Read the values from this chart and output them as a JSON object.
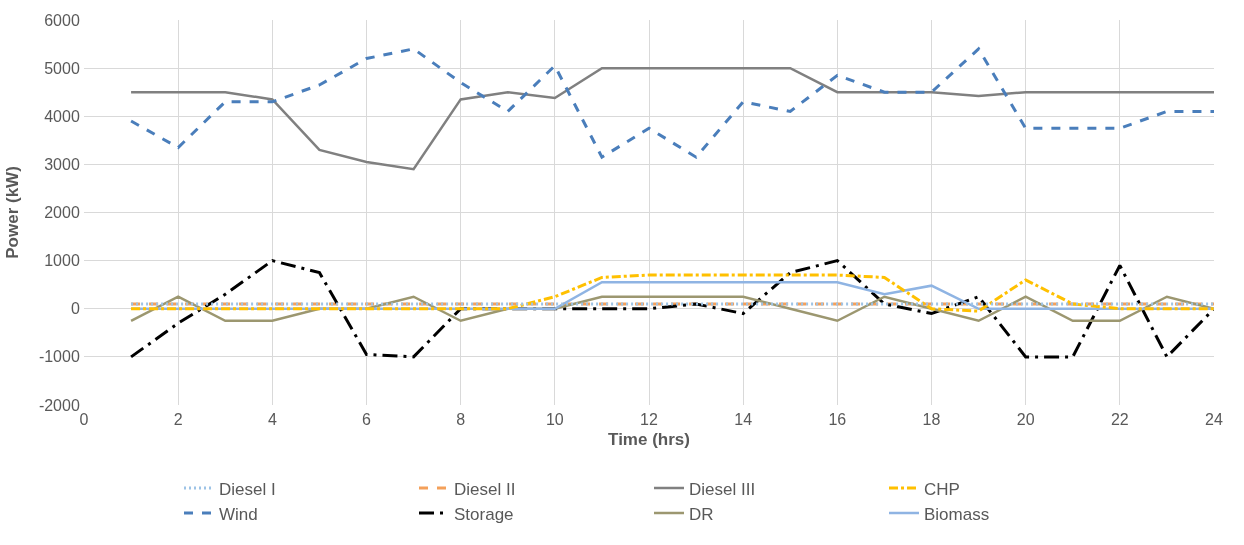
{
  "chart_data": {
    "type": "line",
    "xlabel": "Time (hrs)",
    "ylabel": "Power (kW)",
    "x": [
      1,
      2,
      3,
      4,
      5,
      6,
      7,
      8,
      9,
      10,
      11,
      12,
      13,
      14,
      15,
      16,
      17,
      18,
      19,
      20,
      21,
      22,
      23,
      24
    ],
    "xlim": [
      0,
      24
    ],
    "xticks": [
      0,
      2,
      4,
      6,
      8,
      10,
      12,
      14,
      16,
      18,
      20,
      22,
      24
    ],
    "ylim": [
      -2000,
      6000
    ],
    "yticks": [
      -2000,
      -1000,
      0,
      1000,
      2000,
      3000,
      4000,
      5000,
      6000
    ],
    "grid": true,
    "legend": "bottom",
    "marker": "none",
    "series": [
      {
        "name": "Diesel I",
        "color": "#9dc3e6",
        "line_style": "dotted",
        "values": [
          100,
          100,
          100,
          100,
          100,
          100,
          100,
          100,
          100,
          100,
          100,
          100,
          100,
          100,
          100,
          100,
          100,
          100,
          100,
          100,
          100,
          100,
          100,
          100
        ]
      },
      {
        "name": "Diesel II",
        "color": "#f4a05a",
        "line_style": "dashed",
        "values": [
          100,
          100,
          100,
          100,
          100,
          100,
          100,
          100,
          100,
          100,
          100,
          100,
          100,
          100,
          100,
          100,
          100,
          100,
          100,
          100,
          100,
          100,
          100,
          100
        ]
      },
      {
        "name": "Diesel III",
        "color": "#808080",
        "line_style": "solid",
        "values": [
          4500,
          4500,
          4500,
          4350,
          3300,
          3050,
          2900,
          4350,
          4500,
          4380,
          5000,
          5000,
          5000,
          5000,
          5000,
          4500,
          4500,
          4500,
          4420,
          4500,
          4500,
          4500,
          4500,
          4500
        ]
      },
      {
        "name": "CHP",
        "color": "#ffc000",
        "line_style": "dashdot",
        "values": [
          0,
          0,
          0,
          0,
          0,
          0,
          0,
          0,
          0,
          250,
          650,
          700,
          700,
          700,
          700,
          700,
          650,
          0,
          -50,
          600,
          100,
          0,
          0,
          0
        ]
      },
      {
        "name": "Wind",
        "color": "#4a7ebb",
        "line_style": "dashed",
        "values": [
          3900,
          3350,
          4300,
          4300,
          4650,
          5200,
          5400,
          4700,
          4100,
          5050,
          3150,
          3750,
          3150,
          4300,
          4100,
          4850,
          4500,
          4500,
          5400,
          3750,
          3750,
          3750,
          4100,
          4100
        ]
      },
      {
        "name": "Storage",
        "color": "#000000",
        "line_style": "longdashdot",
        "values": [
          -1000,
          -300,
          300,
          1000,
          750,
          -950,
          -1000,
          0,
          0,
          0,
          0,
          0,
          100,
          -100,
          750,
          1000,
          100,
          -100,
          250,
          -1000,
          -1000,
          900,
          -1000,
          0
        ]
      },
      {
        "name": "DR",
        "color": "#9c9770",
        "line_style": "solid",
        "values": [
          -250,
          250,
          -250,
          -250,
          0,
          0,
          250,
          -250,
          0,
          0,
          250,
          250,
          250,
          250,
          0,
          -250,
          250,
          0,
          -250,
          250,
          -250,
          -250,
          250,
          0
        ]
      },
      {
        "name": "Biomass",
        "color": "#8fb4e3",
        "line_style": "solid",
        "values": [
          0,
          0,
          0,
          0,
          0,
          0,
          0,
          0,
          0,
          0,
          550,
          550,
          550,
          550,
          550,
          550,
          300,
          480,
          0,
          0,
          0,
          0,
          0,
          0
        ]
      }
    ]
  }
}
